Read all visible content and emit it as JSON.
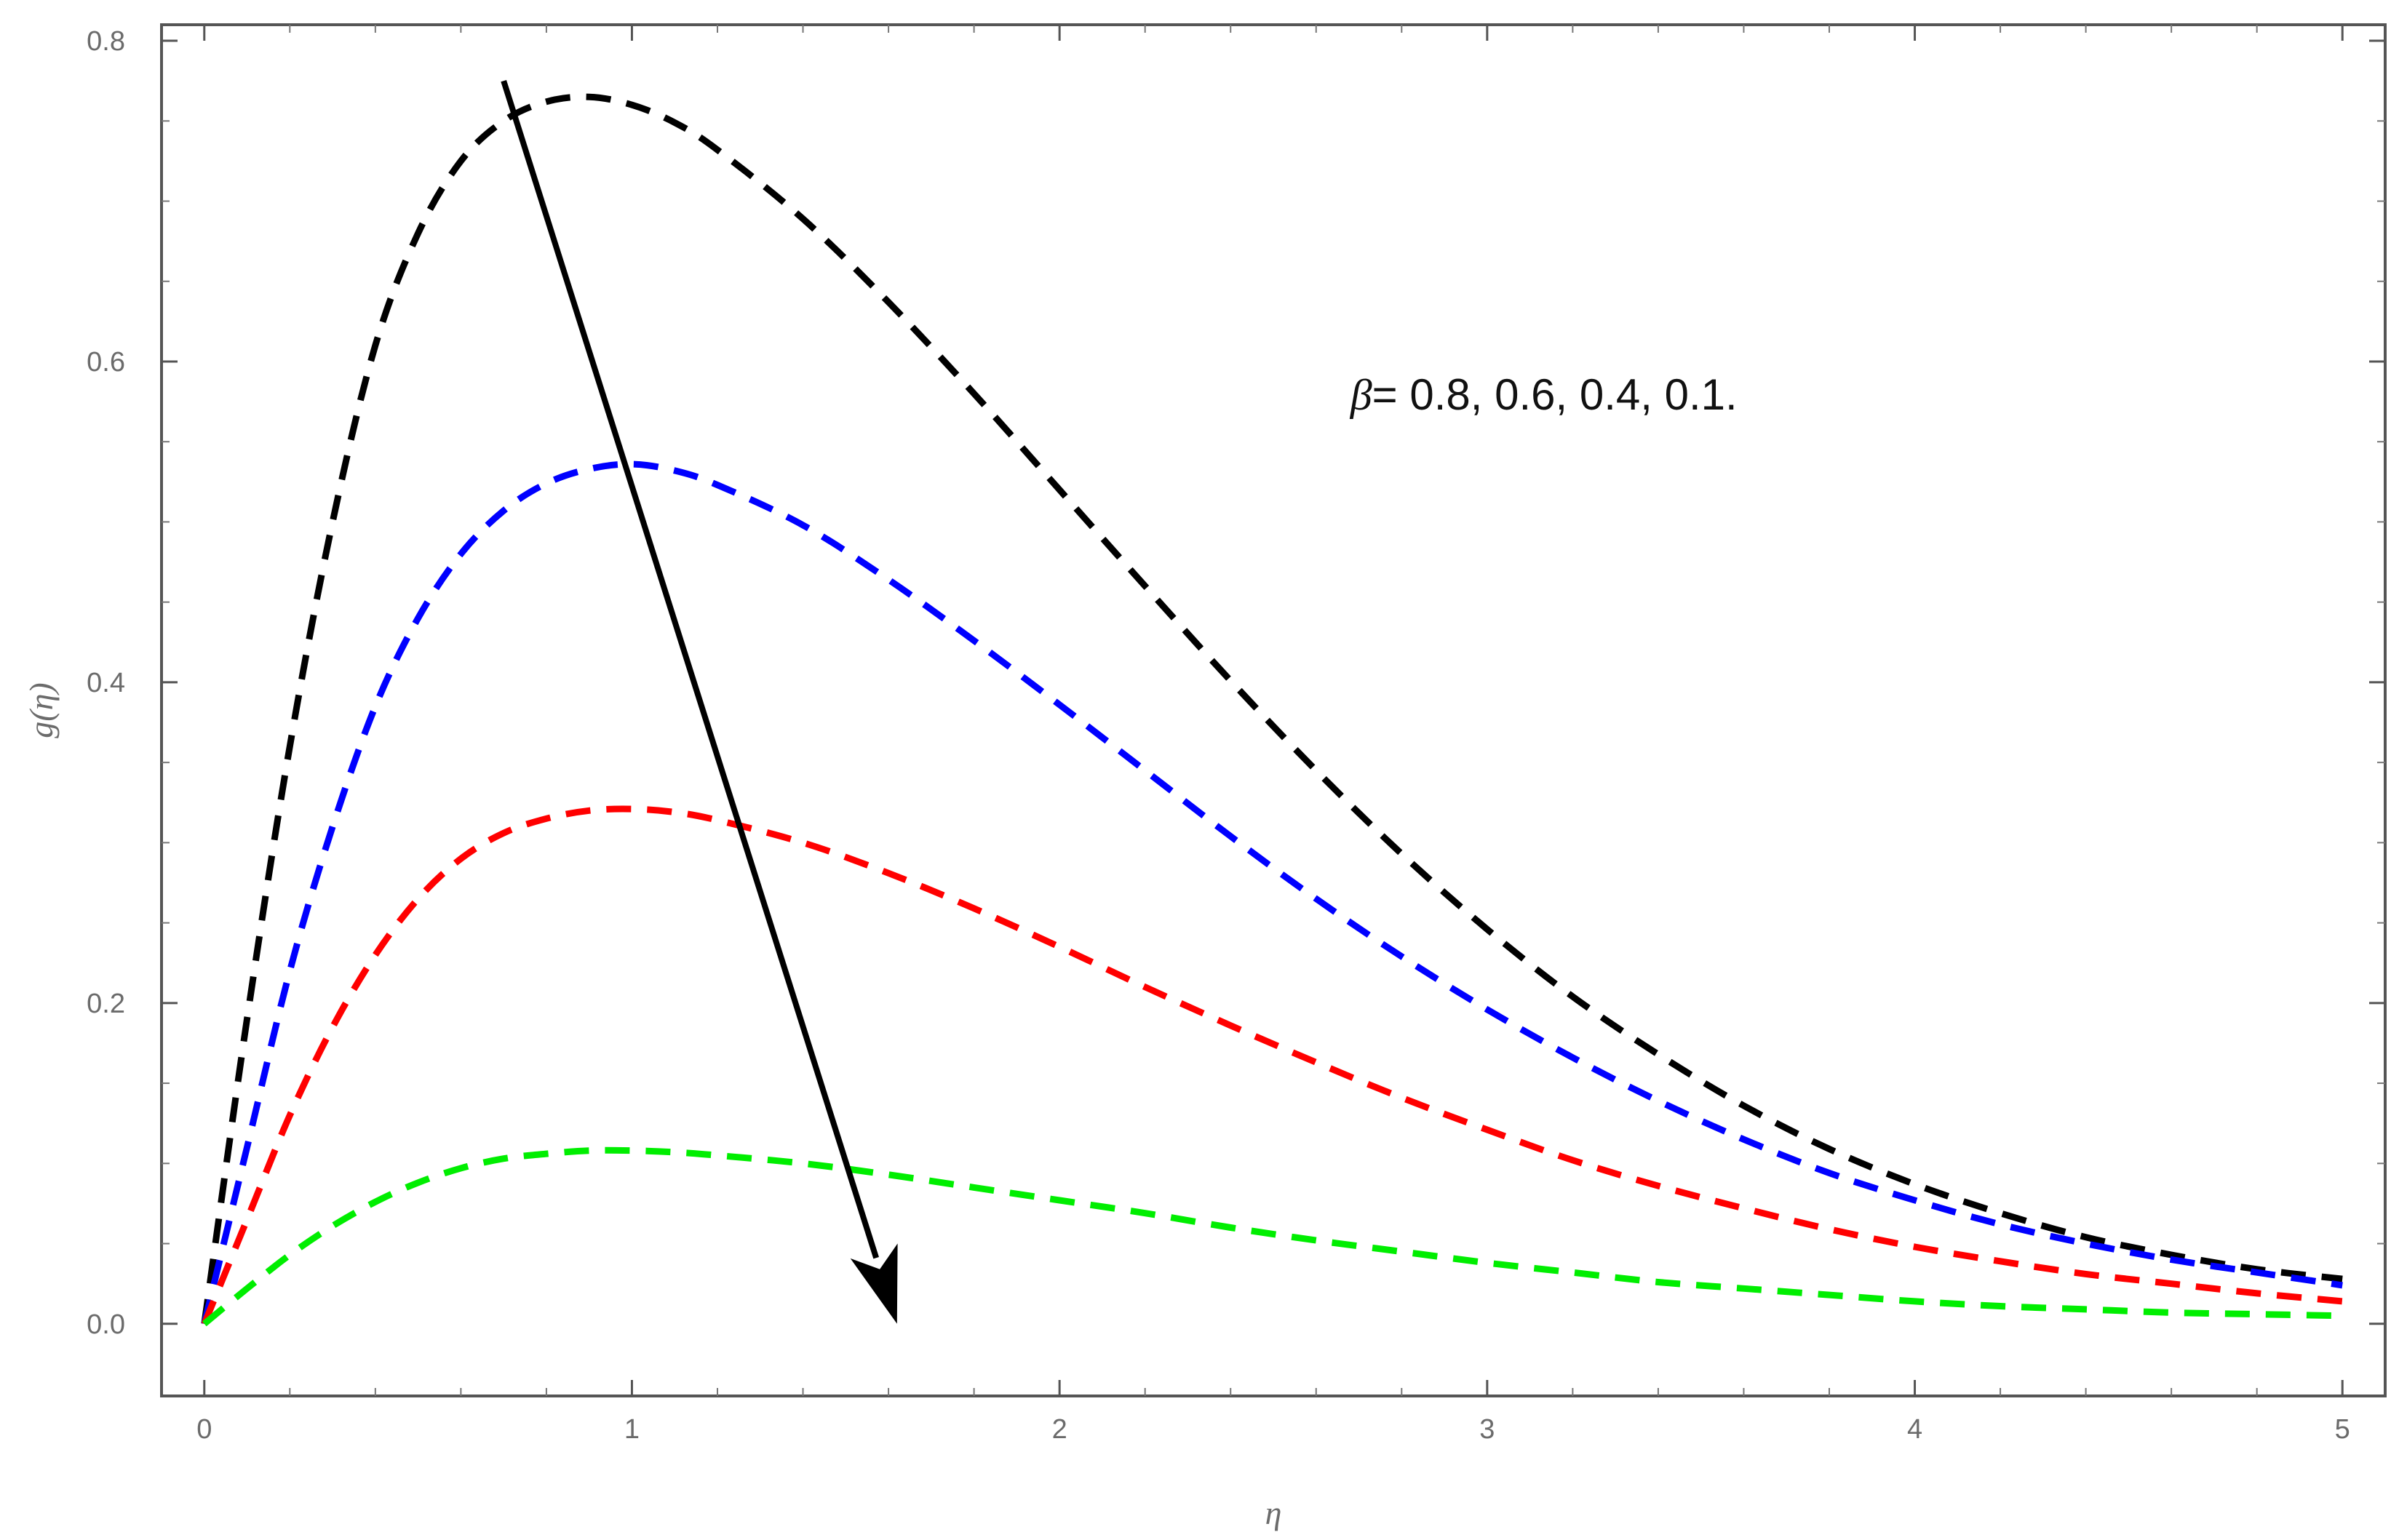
{
  "chart_data": {
    "type": "line",
    "title": "",
    "xlabel": "η",
    "ylabel": "g(η)",
    "xlim": [
      -0.1,
      5.1
    ],
    "ylim": [
      -0.045,
      0.81
    ],
    "x_ticks": [
      0,
      1,
      2,
      3,
      4,
      5
    ],
    "x_tick_labels": [
      "0",
      "1",
      "2",
      "3",
      "4",
      "5"
    ],
    "y_ticks": [
      0.0,
      0.2,
      0.4,
      0.6,
      0.8
    ],
    "y_tick_labels": [
      "0.0",
      "0.2",
      "0.4",
      "0.6",
      "0.8"
    ],
    "grid": false,
    "line_style": "dashed",
    "x": [
      0,
      0.1,
      0.2,
      0.3,
      0.4,
      0.5,
      0.6,
      0.7,
      0.8,
      0.9,
      1.0,
      1.1,
      1.2,
      1.4,
      1.6,
      1.8,
      2.0,
      2.2,
      2.4,
      2.6,
      2.8,
      3.0,
      3.2,
      3.4,
      3.6,
      3.8,
      4.0,
      4.2,
      4.4,
      4.6,
      4.8,
      5.0
    ],
    "series": [
      {
        "color": "#000000",
        "values": [
          0.0,
          0.19,
          0.36,
          0.5,
          0.61,
          0.68,
          0.725,
          0.75,
          0.762,
          0.765,
          0.76,
          0.749,
          0.732,
          0.689,
          0.637,
          0.58,
          0.52,
          0.46,
          0.401,
          0.345,
          0.293,
          0.246,
          0.204,
          0.168,
          0.136,
          0.109,
          0.087,
          0.069,
          0.054,
          0.043,
          0.034,
          0.028
        ]
      },
      {
        "color": "#0000ff",
        "values": [
          0.0,
          0.11,
          0.22,
          0.31,
          0.385,
          0.44,
          0.48,
          0.507,
          0.524,
          0.533,
          0.536,
          0.532,
          0.523,
          0.498,
          0.464,
          0.426,
          0.386,
          0.345,
          0.304,
          0.265,
          0.229,
          0.196,
          0.166,
          0.139,
          0.115,
          0.094,
          0.077,
          0.062,
          0.05,
          0.04,
          0.032,
          0.024
        ]
      },
      {
        "color": "#ff0000",
        "values": [
          0.0,
          0.065,
          0.13,
          0.185,
          0.23,
          0.265,
          0.29,
          0.306,
          0.315,
          0.32,
          0.321,
          0.319,
          0.314,
          0.3,
          0.281,
          0.259,
          0.235,
          0.21,
          0.186,
          0.163,
          0.141,
          0.121,
          0.102,
          0.086,
          0.072,
          0.059,
          0.048,
          0.039,
          0.031,
          0.025,
          0.019,
          0.014
        ]
      },
      {
        "color": "#00ee00",
        "values": [
          0.0,
          0.022,
          0.043,
          0.061,
          0.076,
          0.088,
          0.097,
          0.103,
          0.106,
          0.108,
          0.108,
          0.107,
          0.105,
          0.1,
          0.093,
          0.085,
          0.077,
          0.069,
          0.06,
          0.052,
          0.045,
          0.038,
          0.032,
          0.026,
          0.022,
          0.018,
          0.014,
          0.011,
          0.009,
          0.007,
          0.006,
          0.005
        ]
      }
    ],
    "arrow": {
      "from": [
        0.7,
        0.775
      ],
      "to": [
        1.62,
        0.0
      ],
      "color": "#000000"
    },
    "annotation": {
      "symbol": "β",
      "text": "= 0.8, 0.6, 0.4, 0.1.",
      "x": 2.68,
      "y": 0.57
    }
  }
}
